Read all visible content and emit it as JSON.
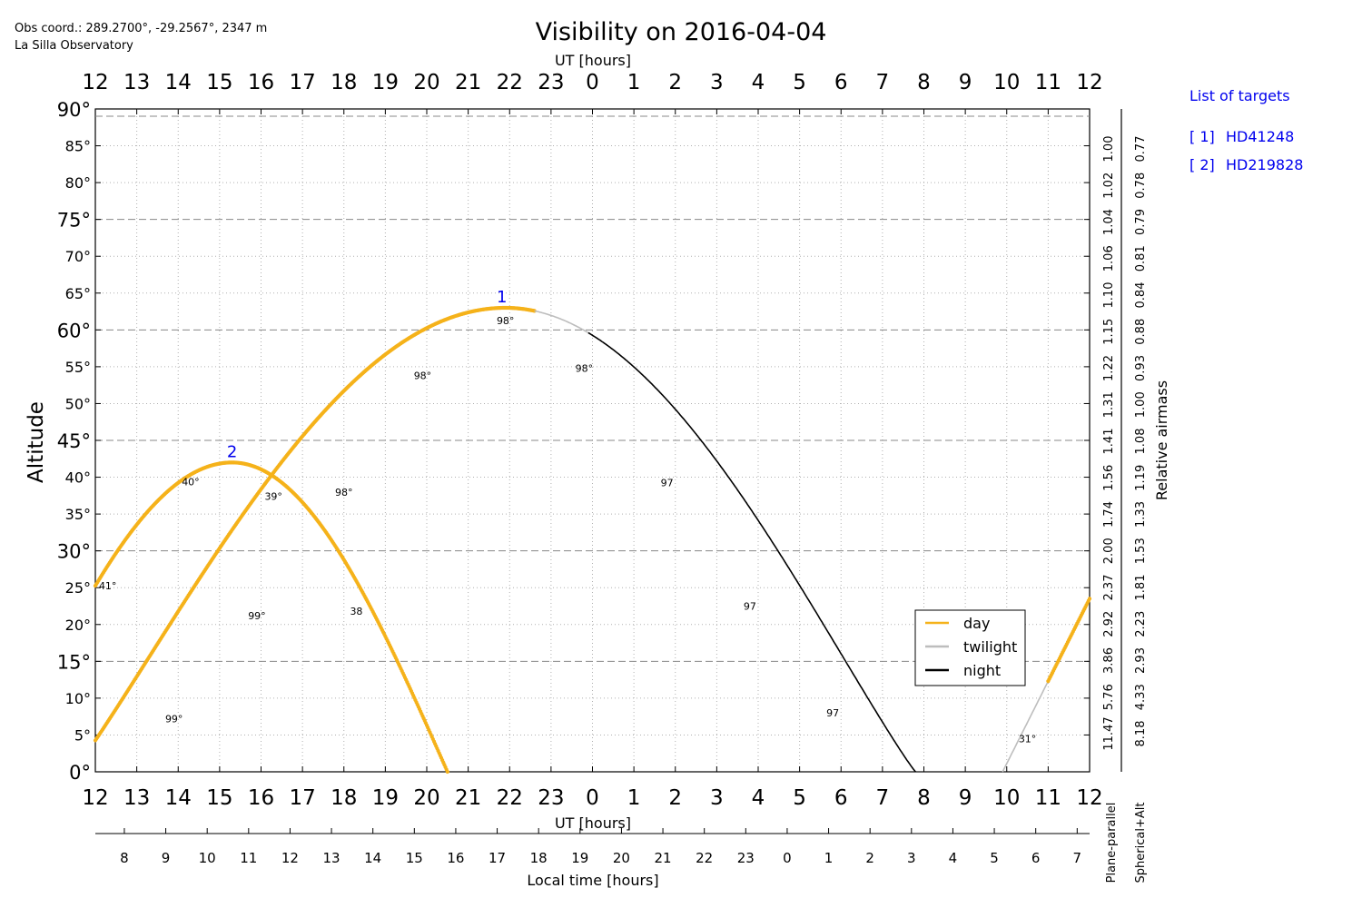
{
  "header": {
    "obs_coord": "Obs coord.: 289.2700°, -29.2567°, 2347 m",
    "observatory": "La Silla Observatory"
  },
  "chart_data": {
    "type": "line",
    "title": "Visibility on 2016-04-04",
    "ylabel": "Altitude",
    "xlabel_top": "UT [hours]",
    "xlabel_bottom": "UT [hours]",
    "xlabel_local": "Local time [hours]",
    "ylabel_right": "Relative airmass",
    "ylim": [
      0,
      90
    ],
    "xlim": [
      12,
      36
    ],
    "grid": true,
    "ut_ticks": [
      "12",
      "13",
      "14",
      "15",
      "16",
      "17",
      "18",
      "19",
      "20",
      "21",
      "22",
      "23",
      "0",
      "1",
      "2",
      "3",
      "4",
      "5",
      "6",
      "7",
      "8",
      "9",
      "10",
      "11",
      "12"
    ],
    "y_ticks": [
      "0°",
      "5°",
      "10°",
      "15°",
      "20°",
      "25°",
      "30°",
      "35°",
      "40°",
      "45°",
      "50°",
      "55°",
      "60°",
      "65°",
      "70°",
      "75°",
      "80°",
      "85°",
      "90°"
    ],
    "local_ticks": [
      "8",
      "9",
      "10",
      "11",
      "12",
      "13",
      "14",
      "15",
      "16",
      "17",
      "18",
      "19",
      "20",
      "21",
      "22",
      "23",
      "0",
      "1",
      "2",
      "3",
      "4",
      "5",
      "6",
      "7"
    ],
    "airmass_plane": [
      "11.47",
      "5.76",
      "3.86",
      "2.92",
      "2.37",
      "2.00",
      "1.74",
      "1.56",
      "1.41",
      "1.31",
      "1.22",
      "1.15",
      "1.10",
      "1.06",
      "1.04",
      "1.02",
      "1.00"
    ],
    "airmass_spherical": [
      "8.18",
      "4.33",
      "2.93",
      "2.23",
      "1.81",
      "1.53",
      "1.33",
      "1.19",
      "1.08",
      "1.00",
      "0.93",
      "0.88",
      "0.84",
      "0.81",
      "0.79",
      "0.78",
      "0.77"
    ],
    "airmass_col_labels": [
      "Plane-parallel",
      "Spherical+Alt"
    ],
    "legend": {
      "placement": "lower-right",
      "entries": [
        "day",
        "twilight",
        "night"
      ]
    },
    "colors": {
      "day": "#f5b21a",
      "twilight": "#bdbdbd",
      "night": "#000000",
      "target_label": "#0000ee"
    },
    "series": [
      {
        "name": "1",
        "peak_ut": 21.9,
        "peak_alt": 63.0,
        "rise_ut": 12.0,
        "set_ut": 31.8,
        "day_end_ut": 22.6,
        "night_start_ut": 23.9,
        "night_end_ut": 31.8,
        "moon_labels": [
          {
            "ut": 13.9,
            "alt": 6.7,
            "text": "99°"
          },
          {
            "ut": 15.9,
            "alt": 20.7,
            "text": "99°"
          },
          {
            "ut": 18.0,
            "alt": 37.5,
            "text": "98°"
          },
          {
            "ut": 19.9,
            "alt": 53.3,
            "text": "98°"
          },
          {
            "ut": 21.9,
            "alt": 60.8,
            "text": "98°"
          },
          {
            "ut": 23.8,
            "alt": 54.3,
            "text": "98°"
          },
          {
            "ut": 25.8,
            "alt": 38.8,
            "text": "97"
          },
          {
            "ut": 27.8,
            "alt": 22.0,
            "text": "97"
          },
          {
            "ut": 29.8,
            "alt": 7.5,
            "text": "97"
          }
        ]
      },
      {
        "name": "2",
        "peak_ut": 15.3,
        "peak_alt": 42.0,
        "rise_ut": null,
        "set_ut": 20.5,
        "moon_labels": [
          {
            "ut": 12.3,
            "alt": 24.8,
            "text": "41°"
          },
          {
            "ut": 14.3,
            "alt": 38.9,
            "text": "40°"
          },
          {
            "ut": 16.3,
            "alt": 36.9,
            "text": "39°"
          },
          {
            "ut": 18.3,
            "alt": 21.3,
            "text": "38"
          }
        ]
      },
      {
        "name": "",
        "rise_ut": 33.9,
        "twilight_end_ut": 35.0,
        "end_alt": 23.5,
        "moon_labels": [
          {
            "ut": 34.5,
            "alt": 4.0,
            "text": "31°"
          }
        ]
      }
    ]
  },
  "targets_panel": {
    "header": "List of targets",
    "items": [
      {
        "num": "[ 1]",
        "name": "HD41248"
      },
      {
        "num": "[ 2]",
        "name": "HD219828"
      }
    ]
  }
}
